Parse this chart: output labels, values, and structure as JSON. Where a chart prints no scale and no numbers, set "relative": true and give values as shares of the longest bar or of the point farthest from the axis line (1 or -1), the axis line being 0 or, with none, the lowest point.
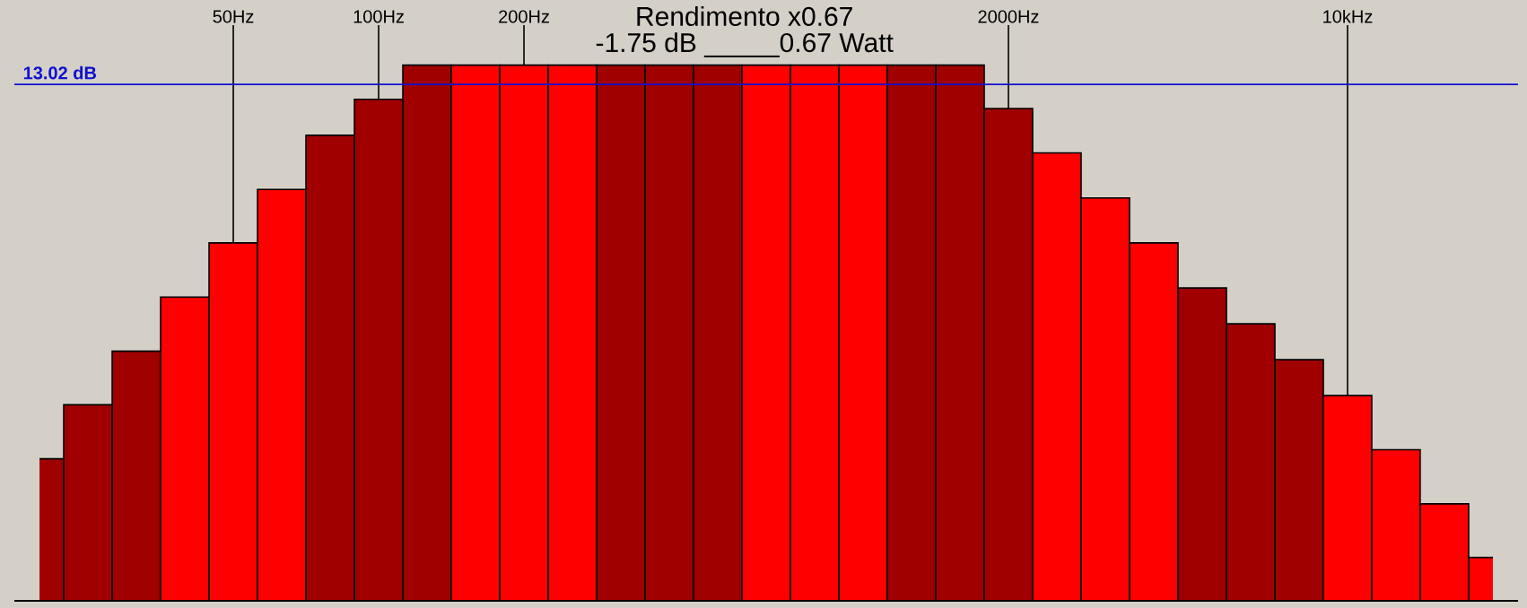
{
  "chart_data": {
    "type": "bar",
    "title": "Rendimento x0.67",
    "subtitle": "-1.75 dB _____0.67 Watt",
    "categories": [
      null,
      null,
      null,
      null,
      "50Hz",
      null,
      null,
      "100Hz",
      null,
      null,
      "200Hz",
      null,
      null,
      null,
      null,
      null,
      null,
      null,
      null,
      null,
      "2000Hz",
      null,
      null,
      null,
      null,
      null,
      null,
      "10kHz",
      null,
      null,
      null
    ],
    "values": [
      0.265,
      0.366,
      0.466,
      0.567,
      0.668,
      0.768,
      0.869,
      0.936,
      1,
      1,
      1,
      1,
      1,
      1,
      1,
      1,
      1,
      1,
      1,
      1,
      0.919,
      0.836,
      0.752,
      0.668,
      0.584,
      0.517,
      0.45,
      0.383,
      0.282,
      0.181,
      0.081
    ],
    "colors": [
      "#a00000",
      "#a00000",
      "#a00000",
      "#ff0000",
      "#ff0000",
      "#ff0000",
      "#a00000",
      "#a00000",
      "#a00000",
      "#ff0000",
      "#ff0000",
      "#ff0000",
      "#a00000",
      "#a00000",
      "#a00000",
      "#ff0000",
      "#ff0000",
      "#ff0000",
      "#a00000",
      "#a00000",
      "#a00000",
      "#ff0000",
      "#ff0000",
      "#ff0000",
      "#a00000",
      "#a00000",
      "#a00000",
      "#ff0000",
      "#ff0000",
      "#ff0000",
      "#ff0000"
    ],
    "relative": true,
    "tick_labels": "x",
    "grid": "x",
    "ref_lines": [
      {
        "axis": "y",
        "value": 0.964,
        "label": "13.02 dB",
        "color": "#1010d0"
      }
    ]
  }
}
